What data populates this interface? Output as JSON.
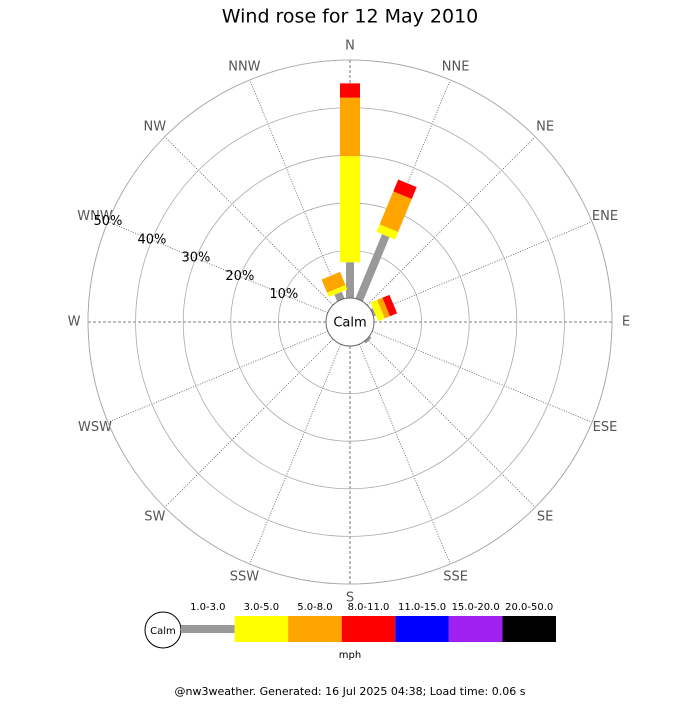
{
  "chart_data": {
    "type": "windrose",
    "title": "Wind rose for 12 May 2010",
    "center_label": "Calm",
    "categories": [
      "N",
      "NNE",
      "NE",
      "ENE",
      "E",
      "ESE",
      "SE",
      "SSE",
      "S",
      "SSW",
      "SW",
      "WSW",
      "W",
      "WNW",
      "NW",
      "NNW"
    ],
    "series": [
      {
        "name": "1.0-3.0",
        "color": "#999999",
        "values": [
          7.5,
          14.6,
          0,
          0.5,
          0,
          0,
          0.5,
          0,
          0,
          0,
          0,
          0,
          0,
          0,
          0,
          1.5
        ]
      },
      {
        "name": "3.0-5.0",
        "color": "#ffff00",
        "values": [
          22.3,
          1.7,
          0,
          1.5,
          0,
          0,
          0,
          0,
          0,
          0,
          0,
          0,
          0,
          0,
          0,
          1.0
        ]
      },
      {
        "name": "5.0-8.0",
        "color": "#ffa500",
        "values": [
          12.3,
          7.5,
          0,
          1.2,
          0,
          0,
          0,
          0,
          0,
          0,
          0,
          0,
          0,
          0,
          0,
          3.0
        ]
      },
      {
        "name": "8.0-11.0",
        "color": "#ff0000",
        "values": [
          3.0,
          2.7,
          0,
          1.6,
          0,
          0,
          0,
          0,
          0,
          0,
          0,
          0,
          0,
          0,
          0,
          0
        ]
      },
      {
        "name": "11.0-15.0",
        "color": "#0000ff",
        "values": [
          0,
          0,
          0,
          0,
          0,
          0,
          0,
          0,
          0,
          0,
          0,
          0,
          0,
          0,
          0,
          0
        ]
      },
      {
        "name": "15.0-20.0",
        "color": "#a020f0",
        "values": [
          0,
          0,
          0,
          0,
          0,
          0,
          0,
          0,
          0,
          0,
          0,
          0,
          0,
          0,
          0,
          0
        ]
      },
      {
        "name": "20.0-50.0",
        "color": "#000000",
        "values": [
          0,
          0,
          0,
          0,
          0,
          0,
          0,
          0,
          0,
          0,
          0,
          0,
          0,
          0,
          0,
          0
        ]
      }
    ],
    "rlim": [
      0,
      50
    ],
    "rticks": [
      {
        "value": 10,
        "label": "10%"
      },
      {
        "value": 20,
        "label": "20%"
      },
      {
        "value": 30,
        "label": "30%"
      },
      {
        "value": 40,
        "label": "40%"
      },
      {
        "value": 50,
        "label": "50%"
      }
    ],
    "legend_unit": "mph"
  },
  "footer": "@nw3weather. Generated: 16 Jul 2025 04:38; Load time: 0.06 s"
}
